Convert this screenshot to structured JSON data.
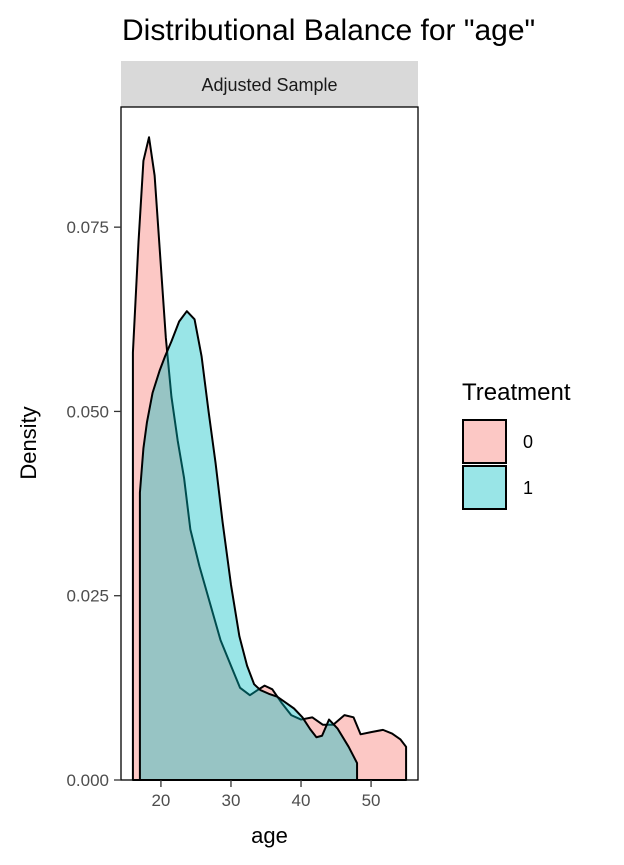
{
  "chart_data": {
    "type": "area",
    "title": "Distributional Balance for \"age\"",
    "facet_label": "Adjusted Sample",
    "xlabel": "age",
    "ylabel": "Density",
    "xlim": [
      14.3,
      56.7
    ],
    "ylim": [
      0,
      0.0913
    ],
    "x_ticks": [
      20,
      30,
      40,
      50
    ],
    "y_ticks": [
      0.0,
      0.025,
      0.05,
      0.075
    ],
    "y_tick_labels": [
      "0.000",
      "0.025",
      "0.050",
      "0.075"
    ],
    "grid": false,
    "legend_title": "Treatment",
    "legend_position": "right",
    "series": [
      {
        "name": "0",
        "color": "#F8766D",
        "x": [
          16,
          16.8,
          17.5,
          18.3,
          19.1,
          19.9,
          20.7,
          21.5,
          22.4,
          23.3,
          24.2,
          25.5,
          27,
          28.5,
          30,
          31.3,
          32.7,
          33.8,
          34.8,
          35.9,
          37.2,
          38.6,
          40,
          41.6,
          43.1,
          44.6,
          46.2,
          47.5,
          48.5,
          50,
          51.7,
          53,
          54.2,
          55
        ],
        "y": [
          0.058,
          0.073,
          0.084,
          0.0872,
          0.082,
          0.071,
          0.06,
          0.052,
          0.046,
          0.041,
          0.034,
          0.029,
          0.024,
          0.019,
          0.0155,
          0.0125,
          0.0115,
          0.0122,
          0.0128,
          0.0123,
          0.0105,
          0.0088,
          0.0082,
          0.0085,
          0.0075,
          0.0075,
          0.0088,
          0.0085,
          0.0062,
          0.0065,
          0.0068,
          0.0063,
          0.0055,
          0.0045
        ]
      },
      {
        "name": "1",
        "color": "#00BFC4",
        "x": [
          17,
          17.5,
          18,
          18.8,
          19.8,
          20.6,
          21.5,
          22.6,
          23.7,
          24.8,
          25.8,
          26.8,
          27.8,
          28.8,
          30,
          31.2,
          32.3,
          33.3,
          34.2,
          35.4,
          36.6,
          37.8,
          39,
          40.2,
          41.3,
          42.2,
          43,
          44,
          45.2,
          46.8,
          48
        ],
        "y": [
          0.039,
          0.045,
          0.0485,
          0.0525,
          0.0555,
          0.0575,
          0.0595,
          0.0622,
          0.0636,
          0.0625,
          0.0575,
          0.05,
          0.043,
          0.035,
          0.0265,
          0.0195,
          0.0155,
          0.013,
          0.0122,
          0.0117,
          0.0113,
          0.0105,
          0.0097,
          0.0085,
          0.0069,
          0.0058,
          0.006,
          0.0082,
          0.007,
          0.0045,
          0.0023
        ]
      }
    ]
  }
}
